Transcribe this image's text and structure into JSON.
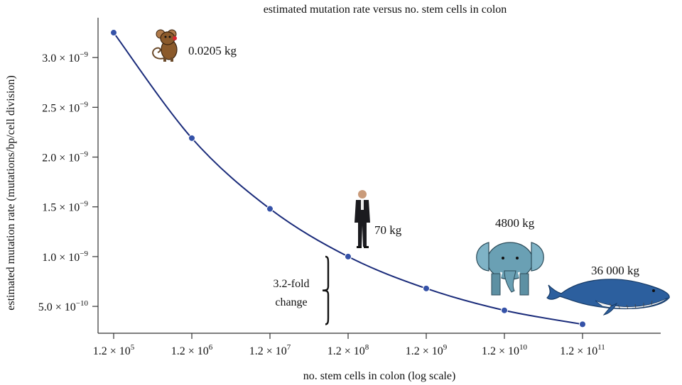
{
  "chart_data": {
    "type": "line",
    "title": "estimated mutation rate versus no. stem cells in colon",
    "xlabel": "no. stem cells in colon (log scale)",
    "ylabel": "estimated mutation rate (mutations/bp/cell division)",
    "x_scale": "log",
    "x_tick_values": [
      120000.0,
      1200000.0,
      12000000.0,
      120000000.0,
      1200000000.0,
      12000000000.0,
      120000000000.0
    ],
    "x_tick_labels": [
      {
        "mant": "1.2 × 10",
        "exp": "5"
      },
      {
        "mant": "1.2 × 10",
        "exp": "6"
      },
      {
        "mant": "1.2 × 10",
        "exp": "7"
      },
      {
        "mant": "1.2 × 10",
        "exp": "8"
      },
      {
        "mant": "1.2 × 10",
        "exp": "9"
      },
      {
        "mant": "1.2 × 10",
        "exp": "10"
      },
      {
        "mant": "1.2 × 10",
        "exp": "11"
      }
    ],
    "y_tick_values": [
      5e-10,
      1e-09,
      1.5e-09,
      2e-09,
      2.5e-09,
      3e-09
    ],
    "y_tick_labels": [
      {
        "mant": "5.0 × 10",
        "exp": "−10"
      },
      {
        "mant": "1.0 × 10",
        "exp": "−9"
      },
      {
        "mant": "1.5 × 10",
        "exp": "−9"
      },
      {
        "mant": "2.0 × 10",
        "exp": "−9"
      },
      {
        "mant": "2.5 × 10",
        "exp": "−9"
      },
      {
        "mant": "3.0 × 10",
        "exp": "−9"
      }
    ],
    "xlim": [
      60000.0,
      1200000000000.0
    ],
    "ylim": [
      2.3e-10,
      3.4e-09
    ],
    "grid": false,
    "series": [
      {
        "x": [
          120000.0,
          1200000.0,
          12000000.0,
          120000000.0,
          1200000000.0,
          12000000000.0,
          120000000000.0
        ],
        "y": [
          3.25e-09,
          2.19e-09,
          1.48e-09,
          1e-09,
          6.8e-10,
          4.6e-10,
          3.2e-10
        ],
        "color": "#1a2b7a",
        "marker_color": "#3552a8"
      }
    ],
    "annotations": [
      {
        "id": "mouse",
        "text": "0.0205 kg",
        "x": 120000.0,
        "y": 3.25e-09
      },
      {
        "id": "human",
        "text": "70 kg",
        "x": 120000000.0,
        "y": 1e-09
      },
      {
        "id": "elephant",
        "text": "4800 kg",
        "x": 12000000000.0,
        "y": 4.6e-10
      },
      {
        "id": "whale",
        "text": "36 000 kg",
        "x": 120000000000.0,
        "y": 3.2e-10
      }
    ],
    "bracket": {
      "lines": [
        "3.2-fold",
        "change"
      ],
      "y_from": 3.2e-10,
      "y_to": 1e-09
    }
  }
}
